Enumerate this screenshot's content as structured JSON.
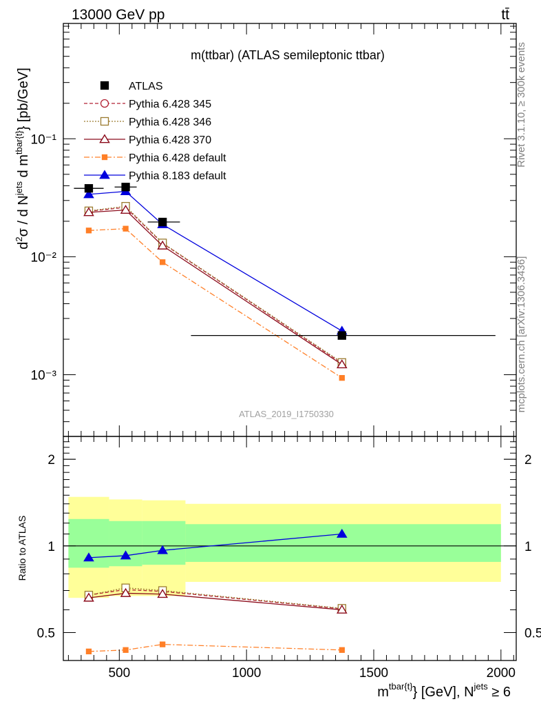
{
  "header": {
    "energy_label": "13000 GeV pp",
    "process_label": "tt̄"
  },
  "side": {
    "rivet_label": "Rivet 3.1.10, ≥ 300k events",
    "mcplots_label": "mcplots.cern.ch [arXiv:1306.3436]"
  },
  "colors": {
    "atlas": "#000000",
    "pythia6_345": "#b22234",
    "pythia6_346": "#9a7a2e",
    "pythia6_370": "#8b0a1a",
    "pythia6_default": "#ff7f27",
    "pythia8_default": "#0000dd",
    "band_outer": "#ffff99",
    "band_inner": "#99ff99"
  },
  "chart_data": [
    {
      "type": "line",
      "name": "main",
      "title": "m(ttbar) (ATLAS semileptonic ttbar)",
      "watermark": "ATLAS_2019_I1750330",
      "xlabel": "",
      "ylabel": "d²σ / d N^jets d m^tbar{t} [pb/GeV]",
      "yscale": "log",
      "xlim": [
        280,
        2060
      ],
      "ylim": [
        0.0003,
        0.95
      ],
      "y_ticks": [
        {
          "value": 0.1,
          "label": "10⁻¹"
        },
        {
          "value": 0.01,
          "label": "10⁻²"
        },
        {
          "value": 0.001,
          "label": "10⁻³"
        }
      ],
      "legend": [
        {
          "key": "atlas",
          "label": "ATLAS"
        },
        {
          "key": "p345",
          "label": "Pythia 6.428 345"
        },
        {
          "key": "p346",
          "label": "Pythia 6.428 346"
        },
        {
          "key": "p370",
          "label": "Pythia 6.428 370"
        },
        {
          "key": "p6def",
          "label": "Pythia 6.428 default"
        },
        {
          "key": "p8def",
          "label": "Pythia 8.183 default"
        }
      ],
      "x": [
        380,
        525,
        670,
        1375
      ],
      "data": {
        "bins": [
          [
            300,
            460
          ],
          [
            460,
            590
          ],
          [
            590,
            760
          ],
          [
            760,
            2000
          ]
        ],
        "values": [
          0.038,
          0.039,
          0.0197,
          0.00215
        ]
      },
      "series": [
        {
          "key": "p345",
          "name": "Pythia 6.428 345",
          "values": [
            0.0243,
            0.0262,
            0.013,
            0.00125
          ]
        },
        {
          "key": "p346",
          "name": "Pythia 6.428 346",
          "values": [
            0.0245,
            0.0268,
            0.0131,
            0.00127
          ]
        },
        {
          "key": "p370",
          "name": "Pythia 6.428 370",
          "values": [
            0.0238,
            0.0249,
            0.0124,
            0.00122
          ]
        },
        {
          "key": "p6def",
          "name": "Pythia 6.428 default",
          "values": [
            0.0167,
            0.0173,
            0.009,
            0.00094
          ]
        },
        {
          "key": "p8def",
          "name": "Pythia 8.183 default",
          "values": [
            0.0338,
            0.0358,
            0.0188,
            0.00235
          ]
        }
      ]
    },
    {
      "type": "line",
      "name": "ratio",
      "ylabel": "Ratio to ATLAS",
      "xlabel": "m^tbar{t} [GeV], N^jets ≥ 6",
      "yscale": "log",
      "xlim": [
        280,
        2060
      ],
      "ylim": [
        0.4,
        2.4
      ],
      "x_ticks": [
        500,
        1000,
        1500,
        2000
      ],
      "y_ticks": [
        {
          "value": 0.5,
          "label": "0.5"
        },
        {
          "value": 1,
          "label": "1"
        },
        {
          "value": 2,
          "label": "2"
        }
      ],
      "x": [
        380,
        525,
        670,
        1375
      ],
      "bands": {
        "bins": [
          [
            300,
            460
          ],
          [
            460,
            590
          ],
          [
            590,
            760
          ],
          [
            760,
            2000
          ]
        ],
        "outer": [
          [
            0.66,
            1.48
          ],
          [
            0.67,
            1.45
          ],
          [
            0.67,
            1.44
          ],
          [
            0.75,
            1.4
          ]
        ],
        "inner": [
          [
            0.84,
            1.24
          ],
          [
            0.85,
            1.22
          ],
          [
            0.86,
            1.22
          ],
          [
            0.88,
            1.19
          ]
        ]
      },
      "series": [
        {
          "key": "p345",
          "values": [
            0.675,
            0.705,
            0.695,
            0.605
          ]
        },
        {
          "key": "p346",
          "values": [
            0.675,
            0.715,
            0.7,
            0.607
          ]
        },
        {
          "key": "p370",
          "values": [
            0.66,
            0.685,
            0.68,
            0.6
          ]
        },
        {
          "key": "p6def",
          "values": [
            0.43,
            0.435,
            0.455,
            0.435
          ]
        },
        {
          "key": "p8def",
          "values": [
            0.91,
            0.925,
            0.965,
            1.1
          ]
        }
      ]
    }
  ]
}
